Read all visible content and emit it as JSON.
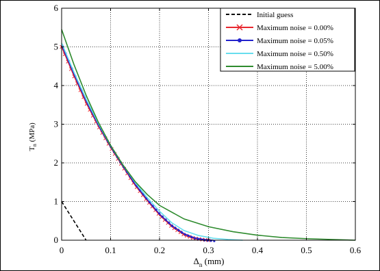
{
  "chart_data": {
    "type": "line",
    "xlabel": "Δn (mm)",
    "xlabel_main": "Δ",
    "xlabel_sub": "n",
    "xlabel_unit": " (mm)",
    "ylabel": "Tn (MPa)",
    "ylabel_main": "T",
    "ylabel_sub": "n",
    "ylabel_unit": " (MPa)",
    "xlim": [
      0,
      0.6
    ],
    "ylim": [
      0,
      6
    ],
    "xticks": [
      "0",
      "0.1",
      "0.2",
      "0.3",
      "0.4",
      "0.5",
      "0.6"
    ],
    "yticks": [
      "0",
      "1",
      "2",
      "3",
      "4",
      "5",
      "6"
    ],
    "grid": true,
    "legend_position": "top-right",
    "series": [
      {
        "name": "Initial guess",
        "color": "#000000",
        "style": "dashed",
        "marker": "none",
        "x": [
          0,
          0.05
        ],
        "y": [
          1.0,
          0.0
        ]
      },
      {
        "name": "Maximum noise = 0.00%",
        "color": "#e8262e",
        "style": "solid",
        "marker": "x",
        "x": [
          0,
          0.025,
          0.05,
          0.075,
          0.1,
          0.125,
          0.15,
          0.175,
          0.2,
          0.225,
          0.25,
          0.27,
          0.29,
          0.3
        ],
        "y": [
          5.0,
          4.25,
          3.55,
          2.95,
          2.4,
          1.9,
          1.42,
          1.02,
          0.65,
          0.35,
          0.14,
          0.05,
          0.01,
          0.0
        ]
      },
      {
        "name": "Maximum noise = 0.05%",
        "color": "#2222cc",
        "style": "solid",
        "marker": "dot",
        "x": [
          0,
          0.025,
          0.05,
          0.075,
          0.1,
          0.125,
          0.15,
          0.175,
          0.2,
          0.225,
          0.25,
          0.27,
          0.29,
          0.31
        ],
        "y": [
          5.05,
          4.3,
          3.6,
          2.98,
          2.42,
          1.92,
          1.45,
          1.05,
          0.68,
          0.38,
          0.17,
          0.07,
          0.02,
          0.0
        ]
      },
      {
        "name": "Maximum noise = 0.50%",
        "color": "#66ddee",
        "style": "solid",
        "marker": "none",
        "x": [
          0,
          0.025,
          0.05,
          0.075,
          0.1,
          0.125,
          0.15,
          0.175,
          0.2,
          0.225,
          0.25,
          0.28,
          0.31,
          0.34,
          0.37
        ],
        "y": [
          5.1,
          4.35,
          3.65,
          3.02,
          2.45,
          1.95,
          1.5,
          1.1,
          0.75,
          0.45,
          0.25,
          0.12,
          0.05,
          0.02,
          0.0
        ]
      },
      {
        "name": "Maximum noise = 5.00%",
        "color": "#2e8b2e",
        "style": "solid",
        "marker": "none",
        "x": [
          0,
          0.025,
          0.05,
          0.075,
          0.1,
          0.125,
          0.15,
          0.175,
          0.2,
          0.25,
          0.3,
          0.35,
          0.4,
          0.45,
          0.5,
          0.55,
          0.6
        ],
        "y": [
          5.45,
          4.55,
          3.75,
          3.05,
          2.45,
          1.95,
          1.52,
          1.18,
          0.9,
          0.55,
          0.35,
          0.22,
          0.13,
          0.07,
          0.04,
          0.02,
          0.0
        ]
      }
    ]
  }
}
